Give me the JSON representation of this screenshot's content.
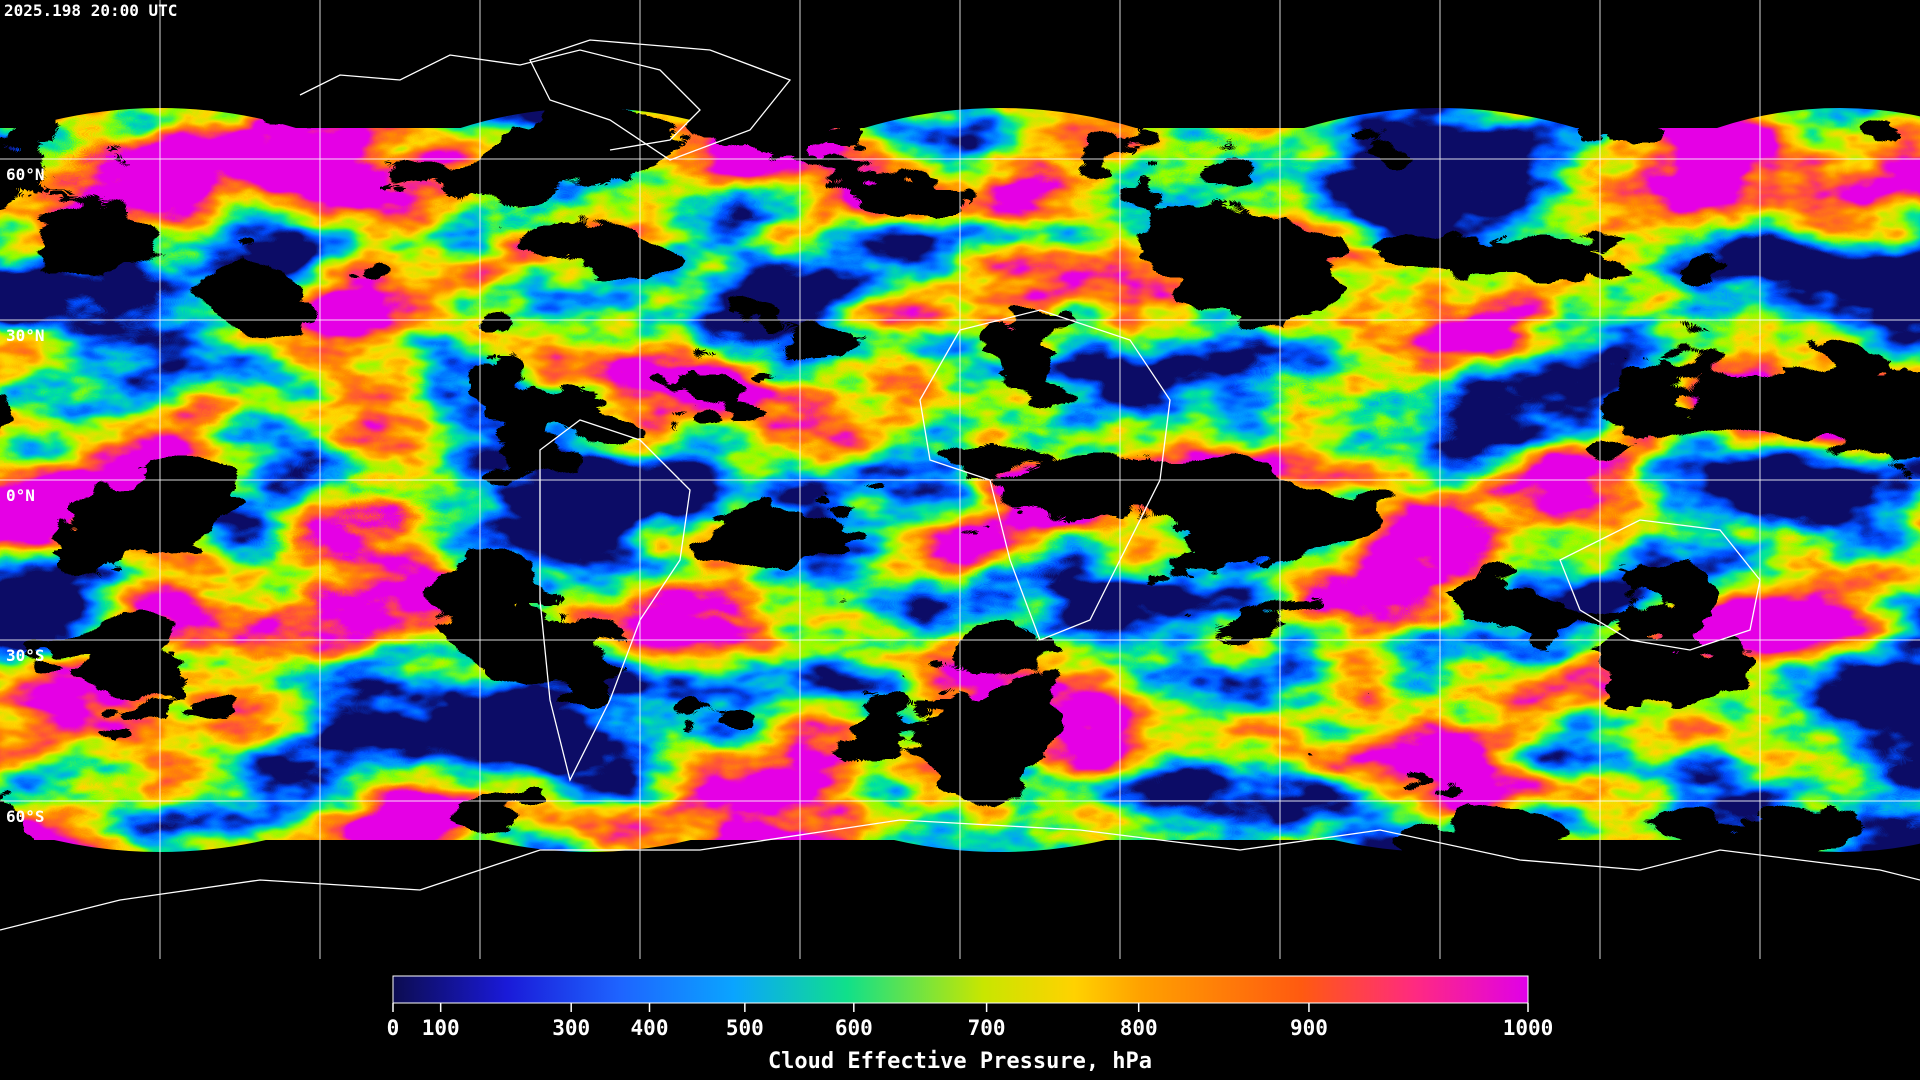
{
  "header": {
    "timestamp": "2025.198 20:00 UTC"
  },
  "map": {
    "lat_labels": [
      "60°N",
      "30°N",
      "0°N",
      "30°S",
      "60°S"
    ]
  },
  "colorbar": {
    "label": "Cloud Effective Pressure, hPa",
    "lim": [
      0,
      1000
    ],
    "ticks": [
      0,
      100,
      300,
      400,
      500,
      600,
      700,
      800,
      900,
      1000
    ]
  }
}
